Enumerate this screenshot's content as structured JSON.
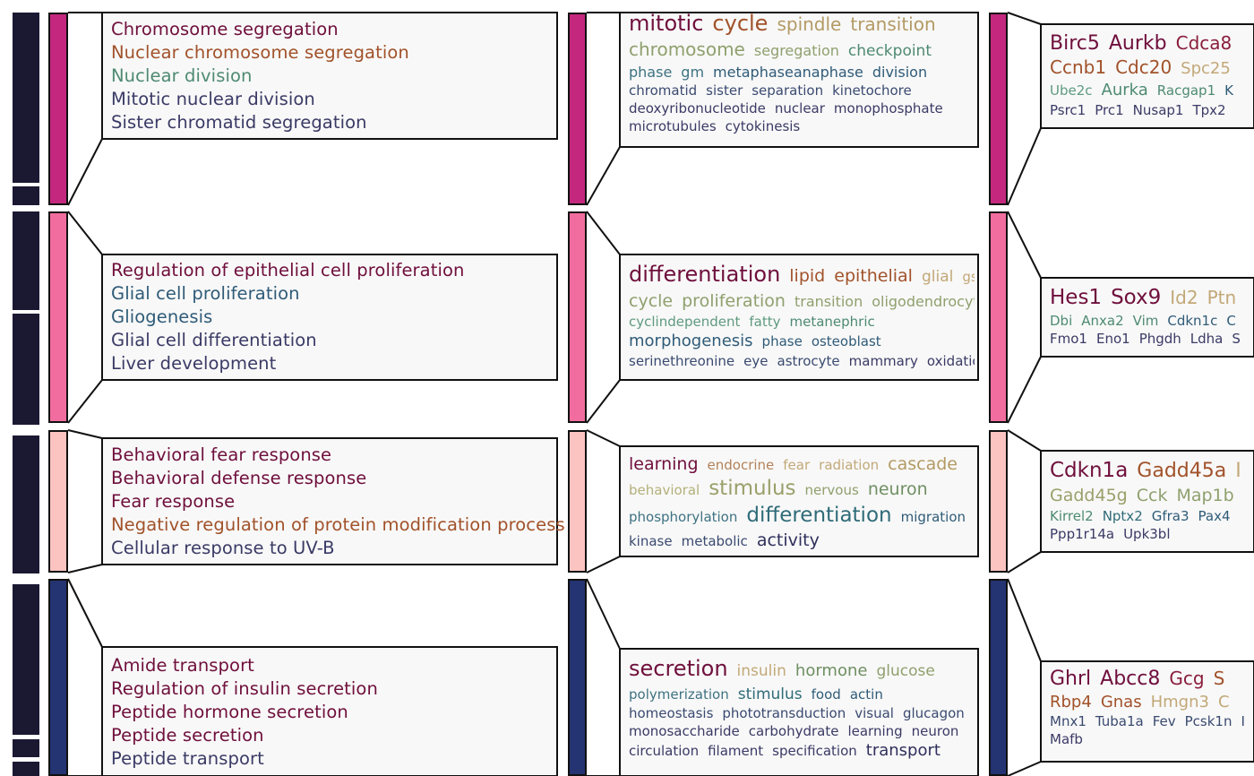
{
  "colors": {
    "dark_block": "#1b1832",
    "panel_fill": "#f8f8f8",
    "outline": "#111111",
    "cluster_bars": [
      "#c3287e",
      "#f26d9f",
      "#fbc4c0",
      "#243371"
    ]
  },
  "clusters": [
    {
      "go_terms": [
        {
          "text": "Chromosome segregation",
          "color": "#6f0f3c"
        },
        {
          "text": "Nuclear chromosome segregation",
          "color": "#a1522a"
        },
        {
          "text": "Nuclear division",
          "color": "#4e8a72"
        },
        {
          "text": "Mitotic nuclear division",
          "color": "#3a3a66"
        },
        {
          "text": "Sister chromatid segregation",
          "color": "#3a3a66"
        }
      ],
      "keyword_lines": [
        [
          {
            "text": "mitotic",
            "size": 24,
            "color": "#6f0f3c"
          },
          {
            "text": "cycle",
            "size": 24,
            "color": "#a1522a"
          },
          {
            "text": "spindle",
            "size": 20,
            "color": "#b39a64"
          },
          {
            "text": "transition",
            "size": 20,
            "color": "#b39a64"
          }
        ],
        [
          {
            "text": "chromosome",
            "size": 20,
            "color": "#8fa06e"
          },
          {
            "text": "segregation",
            "size": 16,
            "color": "#8fa06e"
          },
          {
            "text": "checkpoint",
            "size": 17,
            "color": "#4e8a72"
          }
        ],
        [
          {
            "text": "phase",
            "size": 16,
            "color": "#3e7282"
          },
          {
            "text": "gm",
            "size": 16,
            "color": "#3e7282"
          },
          {
            "text": "metaphaseanaphase",
            "size": 16,
            "color": "#2f5b78"
          },
          {
            "text": "division",
            "size": 16,
            "color": "#2f5b78"
          }
        ],
        [
          {
            "text": "chromatid",
            "size": 15,
            "color": "#3a4a70"
          },
          {
            "text": "sister",
            "size": 15,
            "color": "#3a4a70"
          },
          {
            "text": "separation",
            "size": 15,
            "color": "#3a4a70"
          },
          {
            "text": "kinetochore",
            "size": 15,
            "color": "#3a4a70"
          }
        ],
        [
          {
            "text": "deoxyribonucleotide",
            "size": 15,
            "color": "#3a3a66"
          },
          {
            "text": "nuclear",
            "size": 15,
            "color": "#3a3a66"
          },
          {
            "text": "monophosphate",
            "size": 15,
            "color": "#3a3a66"
          }
        ],
        [
          {
            "text": "microtubules",
            "size": 15,
            "color": "#3a3a66"
          },
          {
            "text": "cytokinesis",
            "size": 15,
            "color": "#3a3a66"
          }
        ]
      ],
      "gene_lines": [
        [
          {
            "text": "Birc5",
            "size": 22,
            "color": "#6f0f3c"
          },
          {
            "text": "Aurkb",
            "size": 22,
            "color": "#6f0f3c"
          },
          {
            "text": "Cdca8",
            "size": 20,
            "color": "#8a1e3c"
          }
        ],
        [
          {
            "text": "Ccnb1",
            "size": 20,
            "color": "#a1522a"
          },
          {
            "text": "Cdc20",
            "size": 20,
            "color": "#a1522a"
          },
          {
            "text": "Spc25",
            "size": 18,
            "color": "#c2a878"
          }
        ],
        [
          {
            "text": "Ube2c",
            "size": 15,
            "color": "#5f9a80"
          },
          {
            "text": "Aurka",
            "size": 18,
            "color": "#4e8a72"
          },
          {
            "text": "Racgap1",
            "size": 15,
            "color": "#4e8a72"
          },
          {
            "text": "K",
            "size": 15,
            "color": "#2f5b78"
          }
        ],
        [
          {
            "text": "Psrc1",
            "size": 15,
            "color": "#3a3a66"
          },
          {
            "text": "Prc1",
            "size": 15,
            "color": "#3a3a66"
          },
          {
            "text": "Nusap1",
            "size": 15,
            "color": "#3a3a66"
          },
          {
            "text": "Tpx2",
            "size": 15,
            "color": "#3a3a66"
          }
        ]
      ]
    },
    {
      "go_terms": [
        {
          "text": "Regulation of epithelial cell proliferation",
          "color": "#6f0f3c"
        },
        {
          "text": "Glial cell proliferation",
          "color": "#2f5b78"
        },
        {
          "text": "Gliogenesis",
          "color": "#2f5b78"
        },
        {
          "text": "Glial cell differentiation",
          "color": "#3a3a66"
        },
        {
          "text": "Liver development",
          "color": "#3a3a66"
        }
      ],
      "keyword_lines": [
        [
          {
            "text": "differentiation",
            "size": 24,
            "color": "#6f0f3c"
          },
          {
            "text": "lipid",
            "size": 19,
            "color": "#a1522a"
          },
          {
            "text": "epithelial",
            "size": 19,
            "color": "#a1522a"
          },
          {
            "text": "glial",
            "size": 17,
            "color": "#c2a878"
          },
          {
            "text": "gs",
            "size": 15,
            "color": "#c2a878"
          }
        ],
        [
          {
            "text": "cycle",
            "size": 19,
            "color": "#8fa06e"
          },
          {
            "text": "proliferation",
            "size": 19,
            "color": "#8fa06e"
          },
          {
            "text": "transition",
            "size": 16,
            "color": "#8fa06e"
          },
          {
            "text": "oligodendrocyte",
            "size": 16,
            "color": "#8fa06e"
          }
        ],
        [
          {
            "text": "cyclindependent",
            "size": 15,
            "color": "#5f9a80"
          },
          {
            "text": "fatty",
            "size": 15,
            "color": "#5f9a80"
          },
          {
            "text": "metanephric",
            "size": 15,
            "color": "#4e8a72"
          }
        ],
        [
          {
            "text": "morphogenesis",
            "size": 18,
            "color": "#2f5b78"
          },
          {
            "text": "phase",
            "size": 15,
            "color": "#2f5b78"
          },
          {
            "text": "osteoblast",
            "size": 15,
            "color": "#2f5b78"
          }
        ],
        [
          {
            "text": "serinethreonine",
            "size": 15,
            "color": "#3a4a70"
          },
          {
            "text": "eye",
            "size": 15,
            "color": "#3a4a70"
          },
          {
            "text": "astrocyte",
            "size": 15,
            "color": "#3a4a70"
          },
          {
            "text": "mammary",
            "size": 15,
            "color": "#3a3a66"
          },
          {
            "text": "oxidation",
            "size": 15,
            "color": "#3a3a66"
          }
        ]
      ],
      "gene_lines": [
        [
          {
            "text": "Hes1",
            "size": 23,
            "color": "#6f0f3c"
          },
          {
            "text": "Sox9",
            "size": 23,
            "color": "#6f0f3c"
          },
          {
            "text": "Id2",
            "size": 20,
            "color": "#c2a878"
          },
          {
            "text": "Ptn",
            "size": 20,
            "color": "#c2a878"
          }
        ],
        [
          {
            "text": "Dbi",
            "size": 15,
            "color": "#4e8a72"
          },
          {
            "text": "Anxa2",
            "size": 15,
            "color": "#4e8a72"
          },
          {
            "text": "Vim",
            "size": 15,
            "color": "#4e8a72"
          },
          {
            "text": "Cdkn1c",
            "size": 15,
            "color": "#2f5b78"
          },
          {
            "text": "C",
            "size": 15,
            "color": "#2f5b78"
          }
        ],
        [
          {
            "text": "Fmo1",
            "size": 15,
            "color": "#3a3a66"
          },
          {
            "text": "Eno1",
            "size": 15,
            "color": "#3a3a66"
          },
          {
            "text": "Phgdh",
            "size": 15,
            "color": "#3a3a66"
          },
          {
            "text": "Ldha",
            "size": 15,
            "color": "#3a3a66"
          },
          {
            "text": "S",
            "size": 15,
            "color": "#3a3a66"
          }
        ]
      ]
    },
    {
      "go_terms": [
        {
          "text": "Behavioral fear response",
          "color": "#6f0f3c"
        },
        {
          "text": "Behavioral defense response",
          "color": "#6f0f3c"
        },
        {
          "text": "Fear response",
          "color": "#6f0f3c"
        },
        {
          "text": "Negative regulation of protein modification process",
          "color": "#a1522a"
        },
        {
          "text": "Cellular response to UV-B",
          "color": "#3a3a66"
        }
      ],
      "keyword_lines": [
        [
          {
            "text": "learning",
            "size": 19,
            "color": "#6f0f3c"
          },
          {
            "text": "endocrine",
            "size": 15,
            "color": "#b3825a"
          },
          {
            "text": "fear",
            "size": 15,
            "color": "#c2a878"
          },
          {
            "text": "radiation",
            "size": 15,
            "color": "#c2a878"
          },
          {
            "text": "cascade",
            "size": 19,
            "color": "#b39a64"
          }
        ],
        [
          {
            "text": "behavioral",
            "size": 15,
            "color": "#b3b07a"
          },
          {
            "text": "stimulus",
            "size": 23,
            "color": "#9aa06a"
          },
          {
            "text": "nervous",
            "size": 15,
            "color": "#8fa06e"
          },
          {
            "text": "neuron",
            "size": 19,
            "color": "#6f8f62"
          }
        ],
        [
          {
            "text": "phosphorylation",
            "size": 15,
            "color": "#3e7282"
          },
          {
            "text": "differentiation",
            "size": 23,
            "color": "#2f6b78"
          },
          {
            "text": "migration",
            "size": 15,
            "color": "#2f5b78"
          }
        ],
        [
          {
            "text": "kinase",
            "size": 15,
            "color": "#3a4a70"
          },
          {
            "text": "metabolic",
            "size": 15,
            "color": "#3a4a70"
          },
          {
            "text": "activity",
            "size": 19,
            "color": "#2f2f5c"
          }
        ]
      ],
      "gene_lines": [
        [
          {
            "text": "Cdkn1a",
            "size": 23,
            "color": "#6f0f3c"
          },
          {
            "text": "Gadd45a",
            "size": 22,
            "color": "#a1522a"
          },
          {
            "text": "I",
            "size": 22,
            "color": "#c2a878"
          }
        ],
        [
          {
            "text": "Gadd45g",
            "size": 19,
            "color": "#9aa06a"
          },
          {
            "text": "Cck",
            "size": 19,
            "color": "#8fa06e"
          },
          {
            "text": "Map1b",
            "size": 19,
            "color": "#8fa06e"
          }
        ],
        [
          {
            "text": "Kirrel2",
            "size": 15,
            "color": "#4e8a72"
          },
          {
            "text": "Nptx2",
            "size": 15,
            "color": "#2f6b78"
          },
          {
            "text": "Gfra3",
            "size": 15,
            "color": "#2f5b78"
          },
          {
            "text": "Pax4",
            "size": 15,
            "color": "#2f5b78"
          }
        ],
        [
          {
            "text": "Ppp1r14a",
            "size": 15,
            "color": "#3a3a66"
          },
          {
            "text": "Upk3bl",
            "size": 15,
            "color": "#3a3a66"
          }
        ]
      ]
    },
    {
      "go_terms": [
        {
          "text": "Amide transport",
          "color": "#6f0f3c"
        },
        {
          "text": "Regulation of insulin secretion",
          "color": "#6f0f3c"
        },
        {
          "text": "Peptide hormone secretion",
          "color": "#6f0f3c"
        },
        {
          "text": "Peptide secretion",
          "color": "#6f0f3c"
        },
        {
          "text": "Peptide transport",
          "color": "#3a3a66"
        }
      ],
      "keyword_lines": [
        [
          {
            "text": "secretion",
            "size": 24,
            "color": "#6f0f3c"
          },
          {
            "text": "insulin",
            "size": 17,
            "color": "#c2a878"
          },
          {
            "text": "hormone",
            "size": 18,
            "color": "#6f8f62"
          },
          {
            "text": "glucose",
            "size": 17,
            "color": "#8fa06e"
          }
        ],
        [
          {
            "text": "polymerization",
            "size": 15,
            "color": "#3e7282"
          },
          {
            "text": "stimulus",
            "size": 17,
            "color": "#2f6b78"
          },
          {
            "text": "food",
            "size": 15,
            "color": "#2f5b78"
          },
          {
            "text": "actin",
            "size": 15,
            "color": "#2f5b78"
          }
        ],
        [
          {
            "text": "homeostasis",
            "size": 15,
            "color": "#3a4a70"
          },
          {
            "text": "phototransduction",
            "size": 15,
            "color": "#3a4a70"
          },
          {
            "text": "visual",
            "size": 15,
            "color": "#3a4a70"
          },
          {
            "text": "glucagon",
            "size": 15,
            "color": "#3a4a70"
          }
        ],
        [
          {
            "text": "monosaccharide",
            "size": 15,
            "color": "#3a3a66"
          },
          {
            "text": "carbohydrate",
            "size": 15,
            "color": "#3a3a66"
          },
          {
            "text": "learning",
            "size": 15,
            "color": "#3a3a66"
          },
          {
            "text": "neuron",
            "size": 15,
            "color": "#3a3a66"
          }
        ],
        [
          {
            "text": "circulation",
            "size": 15,
            "color": "#3a3a66"
          },
          {
            "text": "filament",
            "size": 15,
            "color": "#3a3a66"
          },
          {
            "text": "specification",
            "size": 15,
            "color": "#3a3a66"
          },
          {
            "text": "transport",
            "size": 18,
            "color": "#2f2f5c"
          }
        ]
      ],
      "gene_lines": [
        [
          {
            "text": "Ghrl",
            "size": 22,
            "color": "#6f0f3c"
          },
          {
            "text": "Abcc8",
            "size": 22,
            "color": "#6f0f3c"
          },
          {
            "text": "Gcg",
            "size": 20,
            "color": "#8a1e3c"
          },
          {
            "text": "S",
            "size": 20,
            "color": "#a1522a"
          }
        ],
        [
          {
            "text": "Rbp4",
            "size": 18,
            "color": "#a1522a"
          },
          {
            "text": "Gnas",
            "size": 18,
            "color": "#a1522a"
          },
          {
            "text": "Hmgn3",
            "size": 18,
            "color": "#c2a878"
          },
          {
            "text": "C",
            "size": 18,
            "color": "#c2a878"
          }
        ],
        [
          {
            "text": "Mnx1",
            "size": 15,
            "color": "#3a4a70"
          },
          {
            "text": "Tuba1a",
            "size": 15,
            "color": "#3a4a70"
          },
          {
            "text": "Fev",
            "size": 15,
            "color": "#3a4a70"
          },
          {
            "text": "Pcsk1n",
            "size": 15,
            "color": "#3a4a70"
          },
          {
            "text": "I",
            "size": 15,
            "color": "#3a4a70"
          }
        ],
        [
          {
            "text": "Mafb",
            "size": 15,
            "color": "#3a3a66"
          }
        ]
      ]
    }
  ]
}
